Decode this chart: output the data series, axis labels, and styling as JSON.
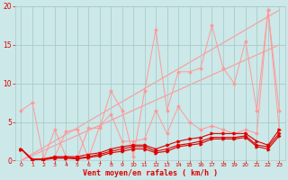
{
  "xlabel": "Vent moyen/en rafales ( km/h )",
  "background_color": "#cce8e8",
  "grid_color": "#aacccc",
  "x": [
    0,
    1,
    2,
    3,
    4,
    5,
    6,
    7,
    8,
    9,
    10,
    11,
    12,
    13,
    14,
    15,
    16,
    17,
    18,
    19,
    20,
    21,
    22,
    23
  ],
  "line_dark1": [
    1.5,
    0.2,
    0.2,
    0.5,
    0.5,
    0.5,
    0.8,
    1.0,
    1.5,
    1.8,
    2.0,
    2.0,
    1.5,
    2.0,
    2.5,
    2.8,
    3.0,
    3.5,
    3.5,
    3.5,
    3.5,
    2.5,
    2.0,
    4.0
  ],
  "line_dark2": [
    1.5,
    0.1,
    0.2,
    0.4,
    0.4,
    0.3,
    0.5,
    0.8,
    1.2,
    1.5,
    1.8,
    1.8,
    1.2,
    1.5,
    2.0,
    2.2,
    2.5,
    3.0,
    3.0,
    3.0,
    3.2,
    2.0,
    1.8,
    3.5
  ],
  "line_dark3": [
    1.5,
    0.0,
    0.1,
    0.3,
    0.3,
    0.2,
    0.4,
    0.6,
    1.0,
    1.2,
    1.5,
    1.5,
    1.0,
    1.2,
    1.8,
    2.0,
    2.2,
    2.8,
    2.8,
    2.8,
    3.0,
    1.8,
    1.5,
    3.2
  ],
  "line_light1": [
    6.5,
    7.5,
    0.2,
    4.0,
    0.5,
    0.3,
    4.2,
    4.2,
    9.0,
    6.5,
    0.5,
    9.0,
    17.0,
    6.5,
    11.5,
    11.5,
    12.0,
    17.5,
    12.0,
    10.0,
    15.5,
    6.5,
    19.5,
    6.5
  ],
  "line_light2": [
    1.5,
    0.0,
    0.3,
    0.5,
    3.8,
    4.0,
    0.3,
    4.5,
    6.0,
    2.5,
    2.5,
    2.8,
    6.5,
    3.5,
    7.0,
    5.0,
    4.0,
    4.5,
    4.0,
    3.5,
    4.0,
    3.5,
    19.5,
    4.0
  ],
  "ref_line1_x": [
    0,
    23
  ],
  "ref_line1_y": [
    0,
    19.5
  ],
  "ref_line2_x": [
    0,
    23
  ],
  "ref_line2_y": [
    0,
    15.0
  ],
  "color_dark": "#dd0000",
  "color_light": "#ff9999",
  "ylim": [
    0,
    20
  ],
  "xlim": [
    -0.5,
    23.5
  ],
  "yticks": [
    0,
    5,
    10,
    15,
    20
  ],
  "xticks": [
    0,
    1,
    2,
    3,
    4,
    5,
    6,
    7,
    8,
    9,
    10,
    11,
    12,
    13,
    14,
    15,
    16,
    17,
    18,
    19,
    20,
    21,
    22,
    23
  ]
}
